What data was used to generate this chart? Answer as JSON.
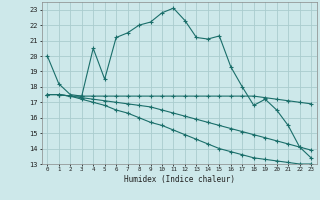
{
  "xlabel": "Humidex (Indice chaleur)",
  "background_color": "#cde8ea",
  "grid_color": "#aaccce",
  "line_color": "#1a6e6a",
  "x_ticks": [
    0,
    1,
    2,
    3,
    4,
    5,
    6,
    7,
    8,
    9,
    10,
    11,
    12,
    13,
    14,
    15,
    16,
    17,
    18,
    19,
    20,
    21,
    22,
    23
  ],
  "y_ticks": [
    13,
    14,
    15,
    16,
    17,
    18,
    19,
    20,
    21,
    22,
    23
  ],
  "ylim": [
    13,
    23.5
  ],
  "xlim": [
    -0.5,
    23.5
  ],
  "curves": [
    [
      20.0,
      18.2,
      17.5,
      17.4,
      20.5,
      18.5,
      21.2,
      21.5,
      22.0,
      22.2,
      22.8,
      23.1,
      22.3,
      21.2,
      21.1,
      21.3,
      19.3,
      18.0,
      16.8,
      17.2,
      16.5,
      15.5,
      14.1,
      13.4
    ],
    [
      17.5,
      17.5,
      17.4,
      17.4,
      17.4,
      17.4,
      17.4,
      17.4,
      17.4,
      17.4,
      17.4,
      17.4,
      17.4,
      17.4,
      17.4,
      17.4,
      17.4,
      17.4,
      17.4,
      17.3,
      17.2,
      17.1,
      17.0,
      16.9
    ],
    [
      17.5,
      17.5,
      17.4,
      17.3,
      17.2,
      17.1,
      17.0,
      16.9,
      16.8,
      16.7,
      16.5,
      16.3,
      16.1,
      15.9,
      15.7,
      15.5,
      15.3,
      15.1,
      14.9,
      14.7,
      14.5,
      14.3,
      14.1,
      13.9
    ],
    [
      17.5,
      17.5,
      17.4,
      17.2,
      17.0,
      16.8,
      16.5,
      16.3,
      16.0,
      15.7,
      15.5,
      15.2,
      14.9,
      14.6,
      14.3,
      14.0,
      13.8,
      13.6,
      13.4,
      13.3,
      13.2,
      13.1,
      13.0,
      13.0
    ]
  ]
}
